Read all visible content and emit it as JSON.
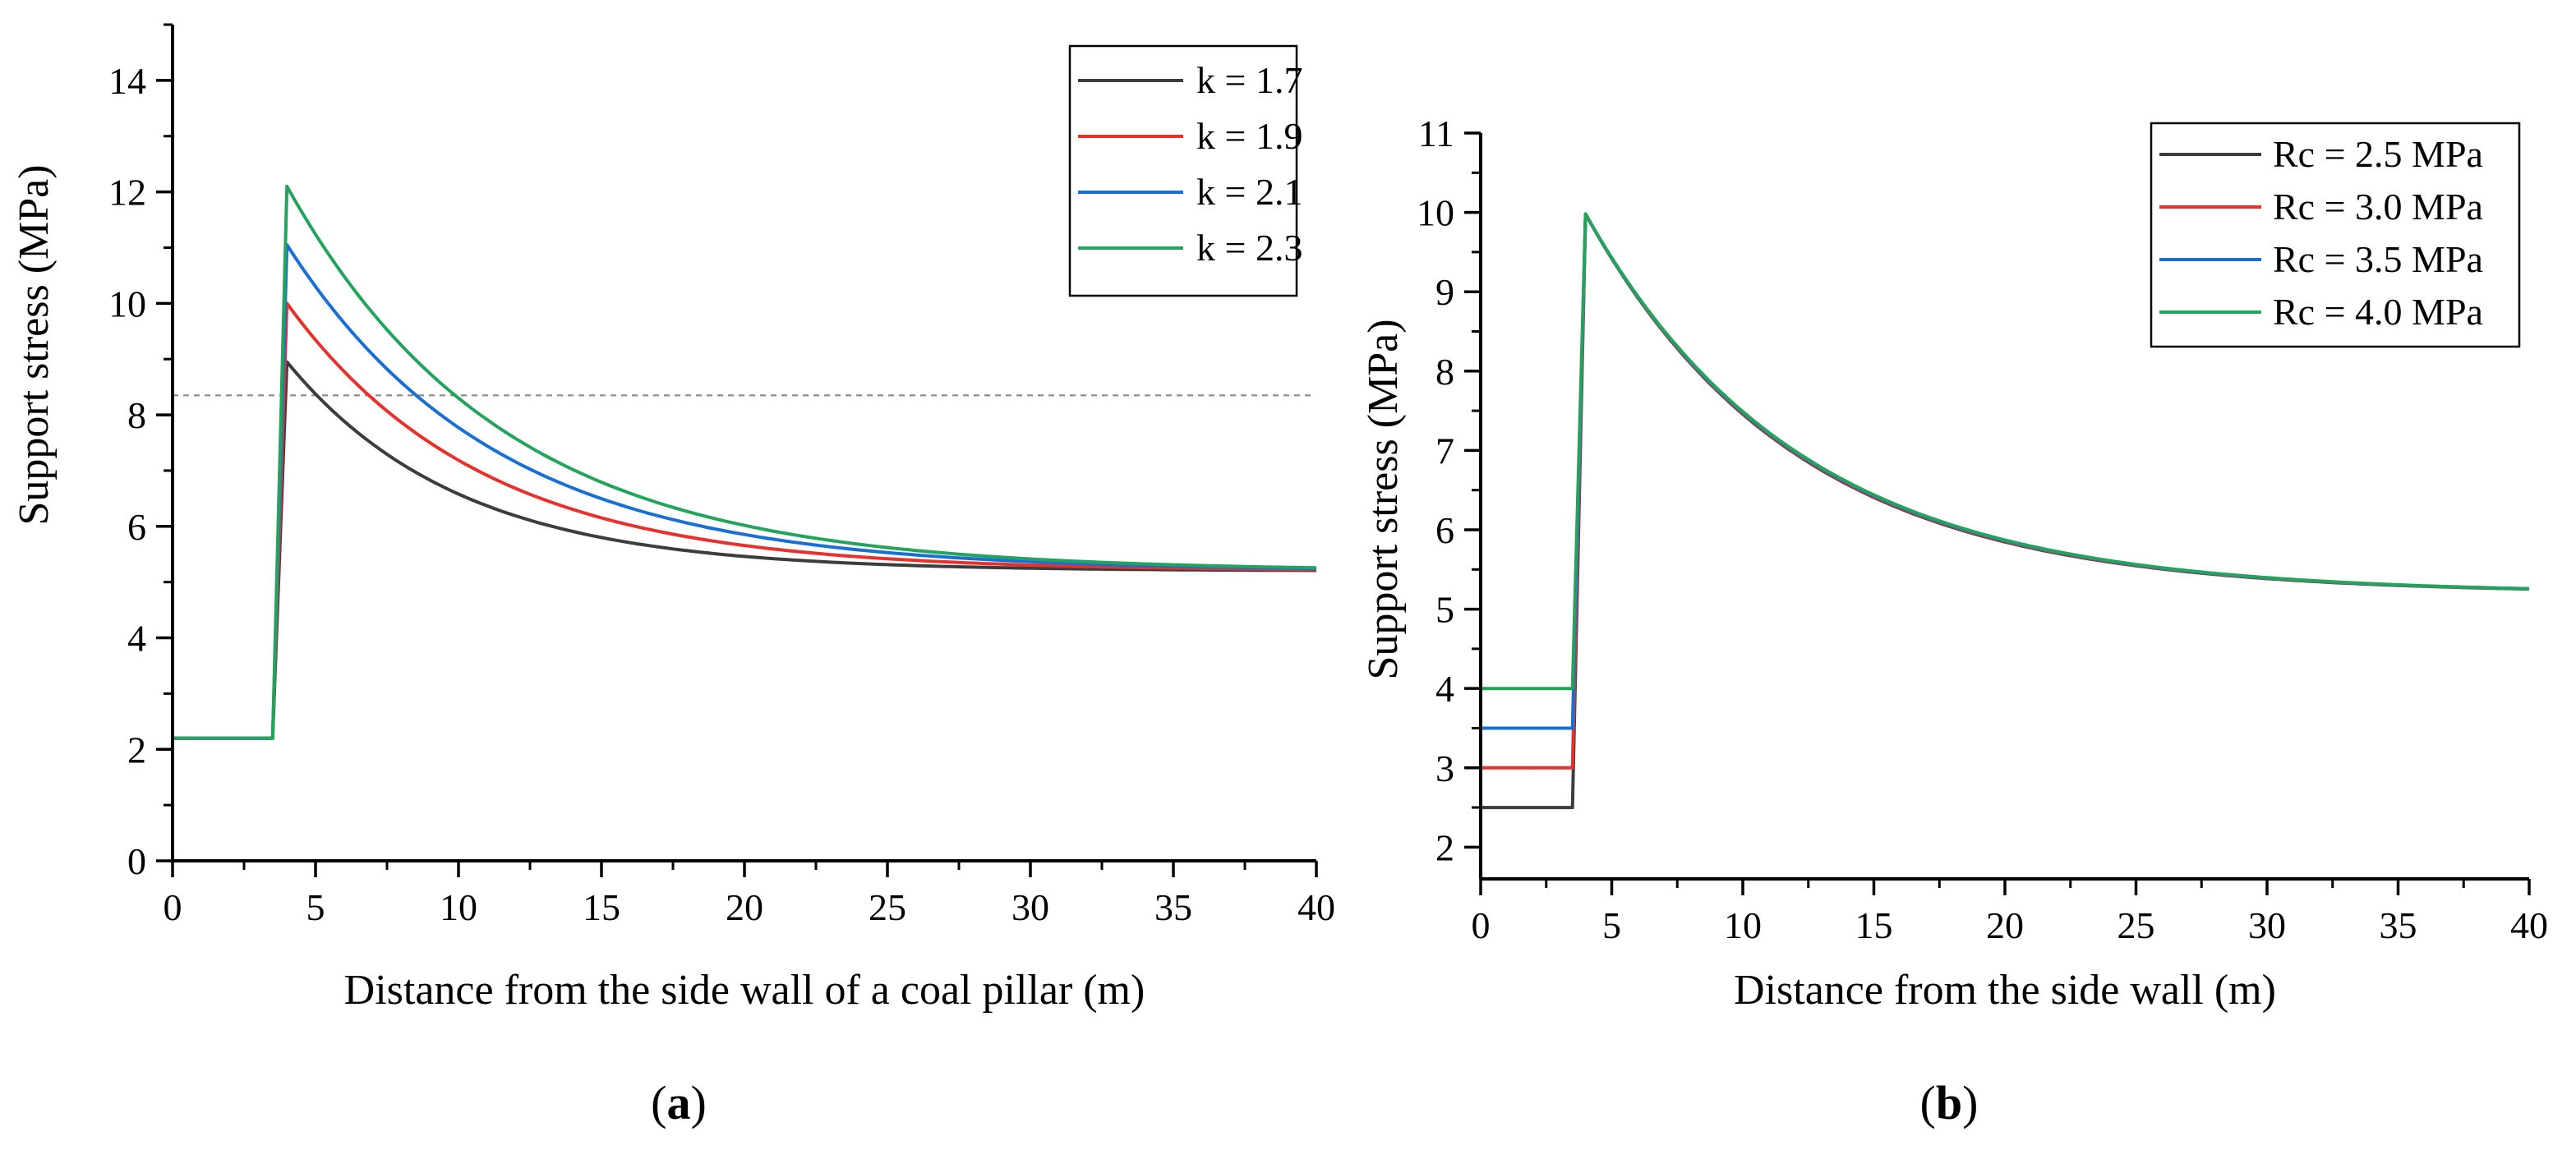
{
  "chart_data": [
    {
      "type": "line",
      "caption_open": "(",
      "caption_letter": "a",
      "caption_close": ")",
      "xlabel": "Distance from the side wall of a coal pillar (m)",
      "ylabel": "Support stress (MPa)",
      "xlim": [
        0,
        40
      ],
      "ylim": [
        0,
        15
      ],
      "x_ticks": [
        "0",
        "5",
        "10",
        "15",
        "20",
        "25",
        "30",
        "35",
        "40"
      ],
      "y_ticks": [
        "0",
        "2",
        "4",
        "6",
        "8",
        "10",
        "12",
        "14"
      ],
      "reference_line": 8.35,
      "step": {
        "plateau_end": 3.5,
        "peak_at": 4.0,
        "plateau_value": 2.2,
        "asymptote": 5.2
      },
      "series": [
        {
          "name": "k = 1.7",
          "color": "#3d3d3d",
          "plateau": 2.2,
          "peak": 8.95,
          "decay": 6.0
        },
        {
          "name": "k = 1.9",
          "color": "#e8302d",
          "plateau": 2.2,
          "peak": 10.0,
          "decay": 6.8
        },
        {
          "name": "k = 2.1",
          "color": "#1a6fd4",
          "plateau": 2.2,
          "peak": 11.05,
          "decay": 7.3
        },
        {
          "name": "k = 2.3",
          "color": "#24a35c",
          "plateau": 2.2,
          "peak": 12.1,
          "decay": 7.5
        }
      ]
    },
    {
      "type": "line",
      "caption_open": "(",
      "caption_letter": "b",
      "caption_close": ")",
      "xlabel": "Distance from the side wall (m)",
      "ylabel": "Support stress (MPa)",
      "xlim": [
        0,
        40
      ],
      "ylim": [
        1.6,
        11
      ],
      "x_ticks": [
        "0",
        "5",
        "10",
        "15",
        "20",
        "25",
        "30",
        "35",
        "40"
      ],
      "y_ticks": [
        "2",
        "3",
        "4",
        "5",
        "6",
        "7",
        "8",
        "9",
        "10",
        "11"
      ],
      "step": {
        "plateau_end": 3.5,
        "peak_at": 4.0,
        "asymptote": 5.2
      },
      "series": [
        {
          "name": "Rc = 2.5 MPa",
          "color": "#3d3d3d",
          "plateau": 2.5,
          "peak": 9.98,
          "decay": 8.0
        },
        {
          "name": "Rc = 3.0 MPa",
          "color": "#e8302d",
          "plateau": 3.0,
          "peak": 9.98,
          "decay": 8.05
        },
        {
          "name": "Rc = 3.5 MPa",
          "color": "#1a6fd4",
          "plateau": 3.5,
          "peak": 9.98,
          "decay": 8.1
        },
        {
          "name": "Rc = 4.0 MPa",
          "color": "#24a35c",
          "plateau": 4.0,
          "peak": 9.98,
          "decay": 8.15
        }
      ]
    }
  ]
}
